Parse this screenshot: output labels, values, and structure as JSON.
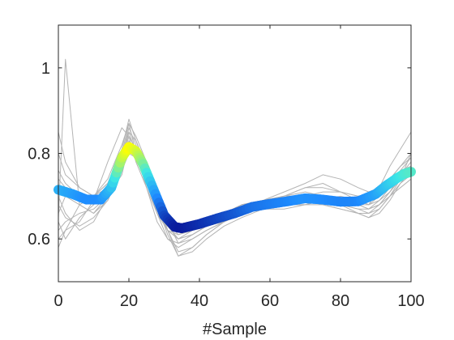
{
  "chart_data": {
    "type": "line",
    "title": "",
    "xlabel": "#Sample",
    "ylabel": "",
    "xlim": [
      0,
      100
    ],
    "ylim": [
      0.5,
      1.1
    ],
    "x_ticks": [
      0,
      20,
      40,
      60,
      80,
      100
    ],
    "y_ticks": [
      0.6,
      0.8,
      1
    ],
    "x_tick_labels": [
      "0",
      "20",
      "40",
      "60",
      "80",
      "100"
    ],
    "y_tick_labels": [
      "0.6",
      "0.8",
      "1"
    ],
    "grid": false,
    "colors": {
      "individual_curves": "#b4b4b4",
      "mean_low": "#0a1a9c",
      "mean_mid": "#1a8cff",
      "mean_high": "#ffff00"
    },
    "mean_curve": {
      "color_mapping": "value (dark blue = low, cyan, yellow = high)",
      "x": [
        0,
        4,
        8,
        12,
        15,
        18,
        20,
        22,
        24,
        27,
        30,
        33,
        35,
        40,
        45,
        50,
        55,
        60,
        65,
        70,
        75,
        80,
        85,
        90,
        93,
        96,
        98,
        100
      ],
      "y": [
        0.715,
        0.705,
        0.692,
        0.692,
        0.72,
        0.79,
        0.815,
        0.805,
        0.775,
        0.715,
        0.655,
        0.628,
        0.625,
        0.635,
        0.648,
        0.66,
        0.675,
        0.682,
        0.688,
        0.695,
        0.692,
        0.687,
        0.688,
        0.705,
        0.725,
        0.742,
        0.752,
        0.757
      ]
    },
    "individual_curves": [
      {
        "y": [
          0.65,
          1.02,
          0.68,
          0.66,
          0.7,
          0.75,
          0.82,
          0.79,
          0.74,
          0.66,
          0.6,
          0.58,
          0.6,
          0.62,
          0.64,
          0.66,
          0.67,
          0.67,
          0.68,
          0.69,
          0.7,
          0.69,
          0.68,
          0.72,
          0.77,
          0.81,
          0.85
        ]
      },
      {
        "y": [
          0.85,
          0.78,
          0.72,
          0.7,
          0.74,
          0.82,
          0.87,
          0.8,
          0.72,
          0.64,
          0.6,
          0.59,
          0.61,
          0.63,
          0.65,
          0.67,
          0.68,
          0.69,
          0.7,
          0.7,
          0.69,
          0.68,
          0.68,
          0.7,
          0.74,
          0.77,
          0.8
        ]
      },
      {
        "y": [
          0.6,
          0.62,
          0.64,
          0.69,
          0.78,
          0.86,
          0.84,
          0.78,
          0.72,
          0.66,
          0.63,
          0.62,
          0.63,
          0.64,
          0.65,
          0.66,
          0.68,
          0.7,
          0.72,
          0.72,
          0.71,
          0.7,
          0.7,
          0.71,
          0.73,
          0.76,
          0.79
        ]
      },
      {
        "y": [
          0.74,
          0.72,
          0.7,
          0.69,
          0.72,
          0.8,
          0.85,
          0.8,
          0.73,
          0.66,
          0.62,
          0.61,
          0.62,
          0.64,
          0.66,
          0.68,
          0.69,
          0.7,
          0.71,
          0.7,
          0.68,
          0.66,
          0.65,
          0.66,
          0.69,
          0.73,
          0.76
        ]
      },
      {
        "y": [
          0.7,
          0.66,
          0.62,
          0.64,
          0.7,
          0.77,
          0.83,
          0.8,
          0.75,
          0.68,
          0.63,
          0.6,
          0.62,
          0.64,
          0.66,
          0.68,
          0.69,
          0.7,
          0.7,
          0.69,
          0.68,
          0.67,
          0.67,
          0.69,
          0.72,
          0.74,
          0.75
        ]
      },
      {
        "y": [
          0.58,
          0.62,
          0.68,
          0.7,
          0.73,
          0.79,
          0.86,
          0.82,
          0.76,
          0.69,
          0.62,
          0.57,
          0.58,
          0.61,
          0.64,
          0.66,
          0.68,
          0.69,
          0.69,
          0.68,
          0.67,
          0.66,
          0.66,
          0.67,
          0.7,
          0.72,
          0.74
        ]
      },
      {
        "y": [
          0.76,
          0.73,
          0.7,
          0.68,
          0.71,
          0.78,
          0.84,
          0.81,
          0.74,
          0.67,
          0.62,
          0.6,
          0.61,
          0.63,
          0.65,
          0.67,
          0.69,
          0.71,
          0.73,
          0.75,
          0.74,
          0.72,
          0.71,
          0.72,
          0.74,
          0.77,
          0.79
        ]
      },
      {
        "y": [
          0.66,
          0.7,
          0.68,
          0.66,
          0.69,
          0.76,
          0.81,
          0.8,
          0.76,
          0.7,
          0.64,
          0.59,
          0.6,
          0.62,
          0.64,
          0.66,
          0.67,
          0.68,
          0.68,
          0.69,
          0.69,
          0.68,
          0.67,
          0.68,
          0.7,
          0.73,
          0.75
        ]
      },
      {
        "y": [
          0.8,
          0.75,
          0.72,
          0.7,
          0.73,
          0.81,
          0.88,
          0.83,
          0.76,
          0.68,
          0.61,
          0.56,
          0.58,
          0.61,
          0.64,
          0.66,
          0.68,
          0.7,
          0.72,
          0.73,
          0.71,
          0.69,
          0.68,
          0.69,
          0.71,
          0.75,
          0.78
        ]
      },
      {
        "y": [
          0.62,
          0.64,
          0.66,
          0.67,
          0.7,
          0.77,
          0.82,
          0.8,
          0.75,
          0.69,
          0.64,
          0.62,
          0.62,
          0.63,
          0.64,
          0.66,
          0.67,
          0.68,
          0.68,
          0.68,
          0.67,
          0.66,
          0.65,
          0.67,
          0.7,
          0.74,
          0.8
        ]
      },
      {
        "y": [
          0.72,
          0.7,
          0.69,
          0.7,
          0.72,
          0.78,
          0.85,
          0.83,
          0.77,
          0.7,
          0.63,
          0.6,
          0.61,
          0.63,
          0.65,
          0.67,
          0.68,
          0.69,
          0.7,
          0.71,
          0.71,
          0.7,
          0.7,
          0.71,
          0.73,
          0.76,
          0.77
        ]
      },
      {
        "y": [
          0.68,
          0.65,
          0.63,
          0.65,
          0.69,
          0.76,
          0.8,
          0.79,
          0.75,
          0.69,
          0.64,
          0.61,
          0.62,
          0.64,
          0.66,
          0.68,
          0.69,
          0.69,
          0.7,
          0.7,
          0.69,
          0.68,
          0.67,
          0.68,
          0.71,
          0.74,
          0.76
        ]
      },
      {
        "y": [
          0.64,
          0.6,
          0.65,
          0.68,
          0.72,
          0.8,
          0.87,
          0.84,
          0.78,
          0.7,
          0.62,
          0.56,
          0.57,
          0.6,
          0.63,
          0.65,
          0.67,
          0.68,
          0.69,
          0.69,
          0.68,
          0.67,
          0.66,
          0.68,
          0.71,
          0.74,
          0.76
        ]
      }
    ],
    "individual_curves_x": [
      0,
      2,
      6,
      10,
      14,
      18,
      20,
      22,
      25,
      28,
      31,
      34,
      38,
      42,
      47,
      52,
      58,
      64,
      70,
      75,
      80,
      85,
      88,
      91,
      94,
      97,
      100
    ]
  }
}
